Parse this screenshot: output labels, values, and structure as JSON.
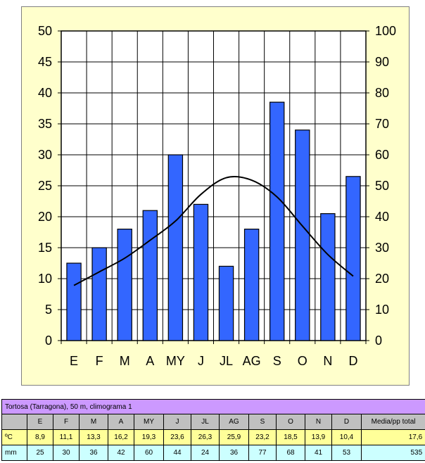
{
  "chart_data": {
    "type": "bar",
    "categories": [
      "E",
      "F",
      "M",
      "A",
      "MY",
      "J",
      "JL",
      "AG",
      "S",
      "O",
      "N",
      "D"
    ],
    "series": [
      {
        "type": "bar",
        "axis": "left",
        "values": [
          12.5,
          15,
          18,
          21,
          30,
          22,
          12,
          18,
          38.5,
          34,
          20.5,
          26.5
        ]
      },
      {
        "type": "line",
        "axis": "right",
        "values": [
          17.8,
          22.2,
          26.6,
          32.4,
          38.6,
          47.2,
          52.6,
          51.8,
          46.4,
          37,
          27.8,
          20.8
        ]
      }
    ],
    "y_left": {
      "min": 0,
      "max": 50,
      "step": 5,
      "ticks": [
        "0",
        "5",
        "10",
        "15",
        "20",
        "25",
        "30",
        "35",
        "40",
        "45",
        "50"
      ]
    },
    "y_right": {
      "min": 0,
      "max": 100,
      "step": 10,
      "ticks": [
        "0",
        "10",
        "20",
        "30",
        "40",
        "50",
        "60",
        "70",
        "80",
        "90",
        "100"
      ]
    },
    "grid": true,
    "colors": {
      "bar_fill": "#3366ff",
      "bar_stroke": "#000000",
      "line": "#000000",
      "panel_bg": "#ffffcc",
      "plot_bg": "#ffffff"
    }
  },
  "table": {
    "title": "Tortosa (Tarragona), 50 m, climograma 1",
    "header": [
      "",
      "E",
      "F",
      "M",
      "A",
      "MY",
      "J",
      "JL",
      "AG",
      "S",
      "O",
      "N",
      "D",
      "Media/pp total"
    ],
    "temp_row": [
      "ºC",
      "8,9",
      "11,1",
      "13,3",
      "16,2",
      "19,3",
      "23,6",
      "26,3",
      "25,9",
      "23,2",
      "18,5",
      "13,9",
      "10,4",
      "17,6"
    ],
    "rain_row": [
      "mm",
      "25",
      "30",
      "36",
      "42",
      "60",
      "44",
      "24",
      "36",
      "77",
      "68",
      "41",
      "53",
      "535"
    ]
  }
}
